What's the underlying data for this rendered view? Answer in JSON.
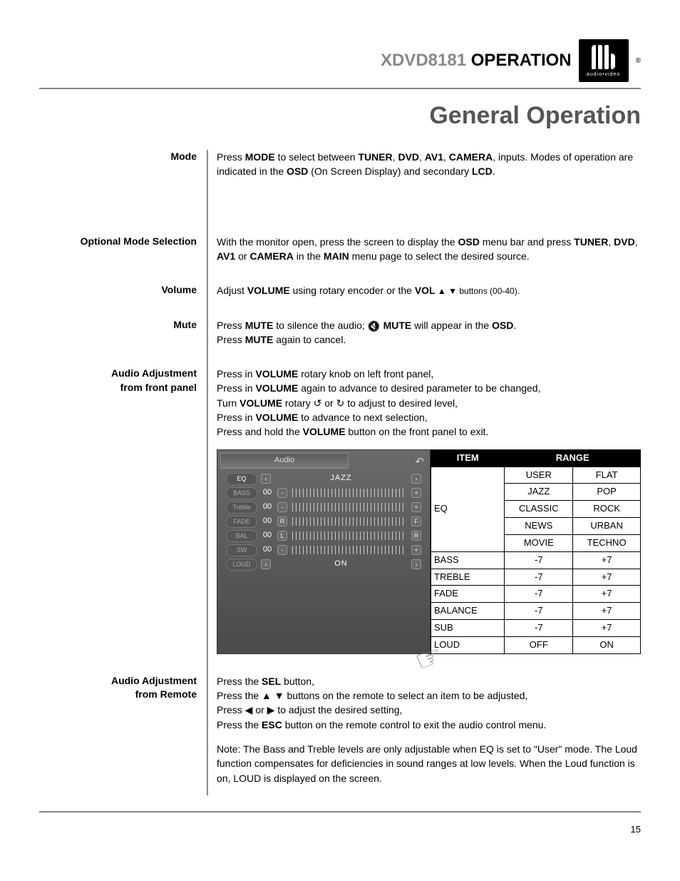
{
  "header": {
    "model": "XDVD8181",
    "word": "OPERATION",
    "logo_sub": "audio•video"
  },
  "page_title": "General Operation",
  "page_number": "15",
  "sections": {
    "mode": {
      "label": "Mode",
      "t1": "Press ",
      "b1": "MODE",
      "t2": " to select between ",
      "b2": "TUNER",
      "t3": ", ",
      "b3": "DVD",
      "t4": ", ",
      "b4": "AV1",
      "t5": ", ",
      "b5": "CAMERA",
      "t6": ", inputs. Modes of operation are indicated in the ",
      "b6": "OSD",
      "t7": " (On Screen Display) and secondary ",
      "b7": "LCD",
      "t8": "."
    },
    "optional": {
      "label": "Optional Mode Selection",
      "t1": "With the monitor open, press the screen to display the ",
      "b1": "OSD",
      "t2": " menu bar and press ",
      "b2": "TUNER",
      "t3": ", ",
      "b3": "DVD",
      "t4": ", ",
      "b4": "AV1",
      "t5": " or ",
      "b5": "CAMERA",
      "t6": " in the ",
      "b6": "MAIN",
      "t7": " menu page to select the desired source."
    },
    "volume": {
      "label": "Volume",
      "t1": "Adjust ",
      "b1": "VOLUME",
      "t2": " using rotary encoder or the ",
      "b2": "VOL",
      "t3": " ▲ ▼ buttons (00-40)."
    },
    "mute": {
      "label": "Mute",
      "t1": "Press ",
      "b1": "MUTE",
      "t2": " to silence the audio; ",
      "b2": "MUTE",
      "t3": " will appear in the ",
      "b3": "OSD",
      "t4": ".",
      "l2a": "Press ",
      "l2b": "MUTE",
      "l2c": " again to cancel."
    },
    "adj_front": {
      "label1": "Audio Adjustment",
      "label2": "from front panel",
      "l1a": "Press in ",
      "l1b": "VOLUME",
      "l1c": " rotary knob on left front panel,",
      "l2a": "Press in ",
      "l2b": "VOLUME",
      "l2c": " again to advance to desired parameter to be changed,",
      "l3a": "Turn ",
      "l3b": "VOLUME",
      "l3c": " rotary ↺    or    ↻   to adjust to desired level,",
      "l4a": "Press in ",
      "l4b": "VOLUME",
      "l4c": "  to advance to next selection,",
      "l5a": "Press and hold the ",
      "l5b": "VOLUME",
      "l5c": " button on the front panel to exit."
    },
    "adj_remote": {
      "label1": "Audio Adjustment",
      "label2": "from Remote",
      "l1a": "Press the ",
      "l1b": "SEL",
      "l1c": " button,",
      "l2": "Press the ▲ ▼ buttons on the remote to select an item to be adjusted,",
      "l3": "Press ◀ or ▶ to adjust the desired setting,",
      "l4a": "Press the ",
      "l4b": "ESC",
      "l4c": " button on the remote control to exit the audio control menu.",
      "note": "Note: The Bass and Treble levels are only adjustable when EQ is set to \"User\" mode. The Loud function compensates for deficiencies in sound ranges at low levels. When the Loud function is on, LOUD is displayed on the screen."
    }
  },
  "audio_panel": {
    "title": "Audio",
    "rows": [
      {
        "label": "EQ",
        "type": "eq",
        "value": "JAZZ"
      },
      {
        "label": "BASS",
        "type": "slider",
        "value": "00",
        "left": "-",
        "right": "+"
      },
      {
        "label": "Treble",
        "type": "slider",
        "value": "00",
        "left": "-",
        "right": "+"
      },
      {
        "label": "FADE",
        "type": "slider",
        "value": "00",
        "left": "R",
        "right": "F"
      },
      {
        "label": "BAL",
        "type": "slider",
        "value": "00",
        "left": "L",
        "right": "R"
      },
      {
        "label": "SW",
        "type": "slider",
        "value": "00",
        "left": "-",
        "right": "+"
      },
      {
        "label": "LOUD",
        "type": "eq",
        "value": "ON"
      }
    ]
  },
  "range_table": {
    "head_item": "ITEM",
    "head_range": "RANGE",
    "eq_label": "EQ",
    "eq_grid": [
      [
        "USER",
        "FLAT"
      ],
      [
        "JAZZ",
        "POP"
      ],
      [
        "CLASSIC",
        "ROCK"
      ],
      [
        "NEWS",
        "URBAN"
      ],
      [
        "MOVIE",
        "TECHNO"
      ]
    ],
    "rows": [
      {
        "item": "BASS",
        "lo": "-7",
        "hi": "+7"
      },
      {
        "item": "TREBLE",
        "lo": "-7",
        "hi": "+7"
      },
      {
        "item": "FADE",
        "lo": "-7",
        "hi": "+7"
      },
      {
        "item": "BALANCE",
        "lo": "-7",
        "hi": "+7"
      },
      {
        "item": "SUB",
        "lo": "-7",
        "hi": "+7"
      },
      {
        "item": "LOUD",
        "lo": "OFF",
        "hi": "ON"
      }
    ]
  }
}
